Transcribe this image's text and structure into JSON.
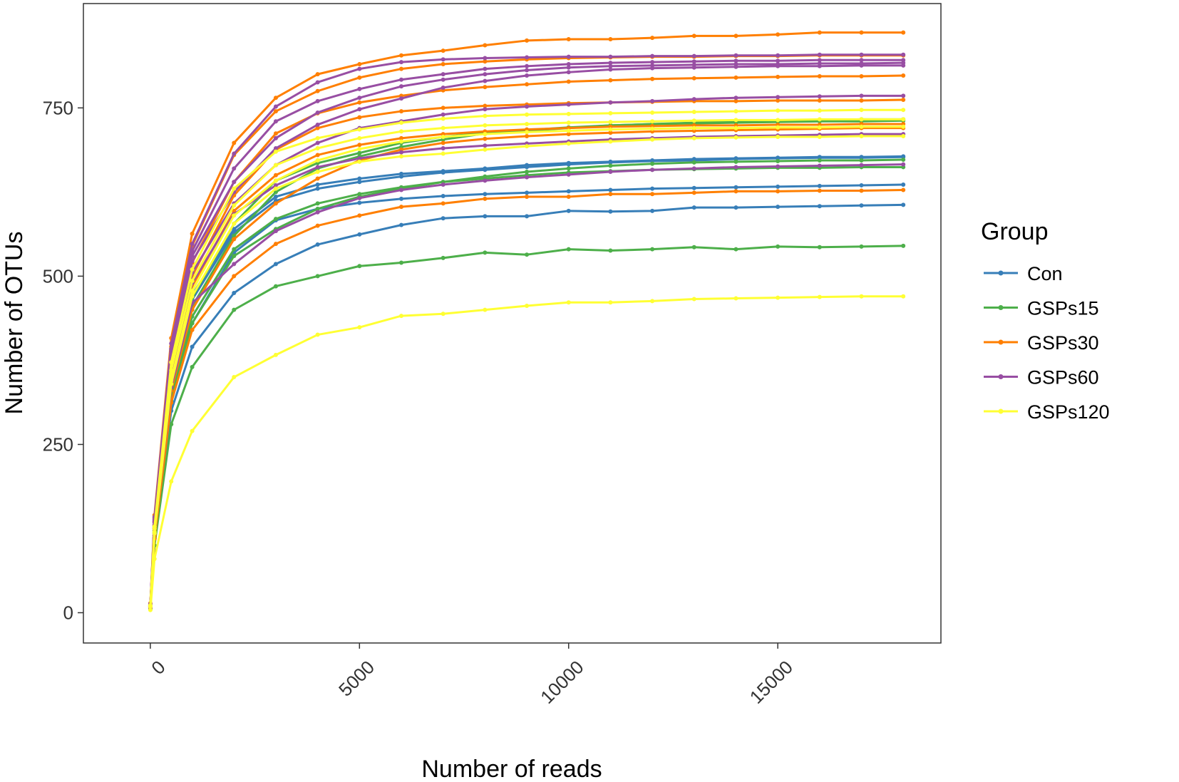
{
  "chart_data": {
    "type": "line",
    "xlabel": "Number of reads",
    "ylabel": "Number of OTUs",
    "xlim": [
      -1600,
      18900
    ],
    "ylim": [
      -45,
      905
    ],
    "xticks": [
      0,
      5000,
      10000,
      15000
    ],
    "yticks": [
      0,
      250,
      500,
      750
    ],
    "grid": false,
    "legend_title": "Group",
    "legend_position": "right",
    "x": [
      1,
      100,
      500,
      1000,
      2000,
      3000,
      4000,
      5000,
      6000,
      7000,
      8000,
      9000,
      10000,
      11000,
      12000,
      13000,
      14000,
      15000,
      16000,
      17000,
      18000
    ],
    "groups": [
      {
        "name": "Con",
        "color": "#377EB8"
      },
      {
        "name": "GSPs15",
        "color": "#4DAF4A"
      },
      {
        "name": "GSPs30",
        "color": "#FF7F00"
      },
      {
        "name": "GSPs60",
        "color": "#984EA3"
      },
      {
        "name": "GSPs120",
        "color": "#FFFF33"
      }
    ],
    "series": [
      {
        "group": "Con",
        "values": [
          10,
          128,
          342,
          472,
          570,
          618,
          636,
          645,
          652,
          656,
          660,
          665,
          668,
          670,
          672,
          674,
          675,
          676,
          677,
          677,
          678
        ]
      },
      {
        "group": "Con",
        "values": [
          9,
          125,
          338,
          465,
          565,
          612,
          630,
          640,
          648,
          654,
          658,
          662,
          666,
          669,
          671,
          672,
          674,
          675,
          676,
          676,
          677
        ]
      },
      {
        "group": "Con",
        "values": [
          7,
          118,
          320,
          430,
          535,
          583,
          600,
          609,
          615,
          619,
          622,
          624,
          626,
          628,
          630,
          631,
          632,
          633,
          634,
          635,
          636
        ]
      },
      {
        "group": "Con",
        "values": [
          6,
          110,
          300,
          395,
          475,
          518,
          547,
          562,
          576,
          586,
          589,
          589,
          597,
          596,
          597,
          602,
          602,
          603,
          604,
          605,
          606
        ]
      },
      {
        "group": "GSPs15",
        "values": [
          9,
          122,
          335,
          468,
          578,
          642,
          668,
          683,
          698,
          707,
          713,
          717,
          721,
          724,
          726,
          727,
          728,
          729,
          730,
          730,
          731
        ]
      },
      {
        "group": "GSPs15",
        "values": [
          9,
          120,
          330,
          455,
          560,
          625,
          660,
          678,
          692,
          703,
          712,
          716,
          720,
          724,
          726,
          728,
          730,
          731,
          732,
          733,
          733
        ]
      },
      {
        "group": "GSPs15",
        "values": [
          8,
          115,
          320,
          440,
          540,
          585,
          608,
          622,
          632,
          640,
          645,
          650,
          654,
          656,
          658,
          659,
          660,
          661,
          661,
          662,
          662
        ]
      },
      {
        "group": "GSPs15",
        "values": [
          8,
          112,
          315,
          430,
          530,
          570,
          600,
          618,
          630,
          640,
          648,
          655,
          660,
          664,
          667,
          669,
          670,
          671,
          672,
          672,
          673
        ]
      },
      {
        "group": "GSPs15",
        "values": [
          5,
          100,
          280,
          365,
          450,
          485,
          500,
          515,
          520,
          527,
          535,
          532,
          540,
          538,
          540,
          543,
          540,
          544,
          543,
          544,
          545
        ]
      },
      {
        "group": "GSPs30",
        "values": [
          14,
          145,
          408,
          563,
          698,
          765,
          800,
          815,
          828,
          835,
          843,
          850,
          852,
          852,
          854,
          857,
          857,
          859,
          862,
          862,
          862
        ]
      },
      {
        "group": "GSPs30",
        "values": [
          12,
          140,
          395,
          545,
          680,
          745,
          775,
          795,
          808,
          815,
          819,
          822,
          824,
          825,
          826,
          826,
          827,
          827,
          828,
          828,
          828
        ]
      },
      {
        "group": "GSPs30",
        "values": [
          11,
          135,
          380,
          520,
          640,
          712,
          742,
          758,
          768,
          776,
          781,
          785,
          789,
          791,
          793,
          794,
          795,
          796,
          797,
          797,
          798
        ]
      },
      {
        "group": "GSPs30",
        "values": [
          10,
          130,
          365,
          500,
          620,
          688,
          720,
          736,
          745,
          750,
          753,
          755,
          757,
          758,
          759,
          760,
          760,
          761,
          761,
          761,
          762
        ]
      },
      {
        "group": "GSPs30",
        "values": [
          9,
          125,
          355,
          485,
          597,
          650,
          680,
          695,
          705,
          711,
          715,
          718,
          720,
          722,
          723,
          724,
          724,
          725,
          725,
          726,
          726
        ]
      },
      {
        "group": "GSPs30",
        "values": [
          8,
          115,
          330,
          450,
          555,
          608,
          645,
          672,
          688,
          698,
          704,
          708,
          711,
          713,
          715,
          716,
          717,
          718,
          719,
          720,
          720
        ]
      },
      {
        "group": "GSPs30",
        "values": [
          7,
          110,
          312,
          420,
          500,
          548,
          575,
          590,
          603,
          608,
          615,
          618,
          618,
          622,
          622,
          624,
          626,
          626,
          627,
          627,
          628
        ]
      },
      {
        "group": "GSPs60",
        "values": [
          13,
          142,
          400,
          548,
          682,
          752,
          788,
          808,
          818,
          822,
          824,
          825,
          826,
          826,
          827,
          827,
          828,
          828,
          829,
          829,
          829
        ]
      },
      {
        "group": "GSPs60",
        "values": [
          12,
          138,
          392,
          537,
          660,
          730,
          760,
          778,
          792,
          800,
          808,
          812,
          815,
          817,
          818,
          819,
          820,
          820,
          821,
          821,
          821
        ]
      },
      {
        "group": "GSPs60",
        "values": [
          12,
          136,
          388,
          530,
          640,
          705,
          743,
          765,
          782,
          792,
          800,
          806,
          810,
          812,
          813,
          814,
          815,
          815,
          816,
          816,
          817
        ]
      },
      {
        "group": "GSPs60",
        "values": [
          11,
          134,
          382,
          522,
          625,
          690,
          725,
          748,
          764,
          780,
          790,
          798,
          803,
          807,
          809,
          810,
          811,
          812,
          812,
          813,
          813
        ]
      },
      {
        "group": "GSPs60",
        "values": [
          10,
          130,
          370,
          505,
          608,
          665,
          698,
          720,
          730,
          740,
          748,
          752,
          755,
          758,
          760,
          763,
          765,
          766,
          767,
          768,
          768
        ]
      },
      {
        "group": "GSPs60",
        "values": [
          9,
          126,
          358,
          490,
          592,
          635,
          662,
          675,
          684,
          690,
          694,
          697,
          700,
          703,
          705,
          707,
          708,
          709,
          710,
          711,
          711
        ]
      },
      {
        "group": "GSPs60",
        "values": [
          8,
          118,
          335,
          460,
          518,
          567,
          595,
          616,
          628,
          636,
          642,
          647,
          651,
          655,
          658,
          660,
          662,
          663,
          664,
          665,
          666
        ]
      },
      {
        "group": "GSPs120",
        "values": [
          11,
          128,
          372,
          510,
          630,
          685,
          705,
          718,
          728,
          734,
          738,
          740,
          741,
          742,
          743,
          744,
          745,
          746,
          746,
          747,
          747
        ]
      },
      {
        "group": "GSPs120",
        "values": [
          10,
          125,
          360,
          493,
          605,
          665,
          690,
          705,
          715,
          720,
          724,
          726,
          728,
          729,
          730,
          731,
          732,
          732,
          733,
          733,
          733
        ]
      },
      {
        "group": "GSPs120",
        "values": [
          9,
          120,
          345,
          478,
          590,
          642,
          672,
          689,
          700,
          707,
          711,
          714,
          716,
          718,
          719,
          720,
          720,
          721,
          721,
          722,
          722
        ]
      },
      {
        "group": "GSPs120",
        "values": [
          9,
          118,
          340,
          470,
          578,
          630,
          655,
          670,
          678,
          682,
          688,
          693,
          697,
          700,
          703,
          705,
          706,
          707,
          707,
          708,
          708
        ]
      },
      {
        "group": "GSPs120",
        "values": [
          4,
          80,
          195,
          270,
          350,
          383,
          413,
          424,
          441,
          444,
          450,
          456,
          461,
          461,
          463,
          466,
          467,
          468,
          469,
          470,
          470
        ]
      }
    ]
  }
}
